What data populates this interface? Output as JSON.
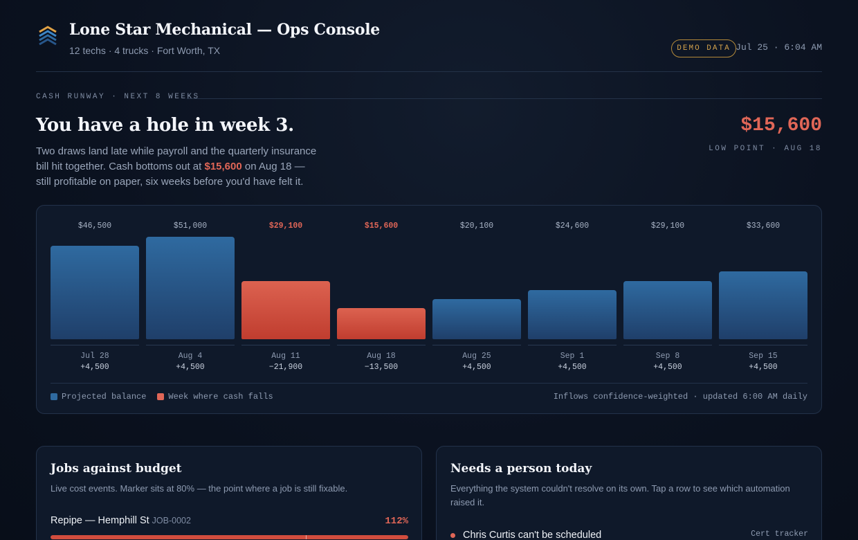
{
  "header": {
    "title": "Lone Star Mechanical — Ops Console",
    "subtitle": "12 techs · 4 trucks · Fort Worth, TX",
    "badge": "DEMO DATA",
    "clock": "Jul 25 · 6:04 AM",
    "logo_icon": "chevron-stack-logo-icon"
  },
  "runway": {
    "section_label": "CASH RUNWAY · NEXT 8 WEEKS",
    "headline": "You have a hole in week 3.",
    "lede_before": "Two draws land late while payroll and the quarterly insurance bill hit together. Cash bottoms out at ",
    "lede_highlight": "$15,600",
    "lede_after": " on Aug 18 — still profitable on paper, six weeks before you'd have felt it.",
    "low_point_amount": "$15,600",
    "low_point_label": "LOW POINT · AUG 18"
  },
  "chart_data": {
    "type": "bar",
    "categories": [
      "Jul 28",
      "Aug 4",
      "Aug 11",
      "Aug 18",
      "Aug 25",
      "Sep 1",
      "Sep 8",
      "Sep 15"
    ],
    "values": [
      46500,
      51000,
      29100,
      15600,
      20100,
      24600,
      29100,
      33600
    ],
    "value_labels": [
      "$46,500",
      "$51,000",
      "$29,100",
      "$15,600",
      "$20,100",
      "$24,600",
      "$29,100",
      "$33,600"
    ],
    "deltas": [
      "+4,500",
      "+4,500",
      "−21,900",
      "−13,500",
      "+4,500",
      "+4,500",
      "+4,500",
      "+4,500"
    ],
    "falling_weeks": [
      false,
      false,
      true,
      true,
      false,
      false,
      false,
      false
    ],
    "ylim": [
      0,
      51000
    ],
    "legend": [
      {
        "label": "Projected balance",
        "color": "#2f6aa0"
      },
      {
        "label": "Week where cash falls",
        "color": "#e06657"
      }
    ],
    "legend_position": "bottom-left",
    "note": "Inflows confidence-weighted · updated 6:00 AM daily"
  },
  "jobs": {
    "title": "Jobs against budget",
    "description": "Live cost events. Marker sits at 80% — the point where a job is still fixable.",
    "items": [
      {
        "name": "Repipe — Hemphill St",
        "id": "JOB-0002",
        "pct_label": "112%",
        "pct": 1.12,
        "marker": 0.8
      }
    ]
  },
  "needs": {
    "title": "Needs a person today",
    "description": "Everything the system couldn't resolve on its own. Tap a row to see which automation raised it.",
    "items": [
      {
        "text": "Chris Curtis can't be scheduled",
        "source": "Cert tracker"
      }
    ]
  },
  "colors": {
    "accent_red": "#e06657",
    "bar_blue": "#2f6aa0",
    "badge_gold": "#d2a14c"
  }
}
